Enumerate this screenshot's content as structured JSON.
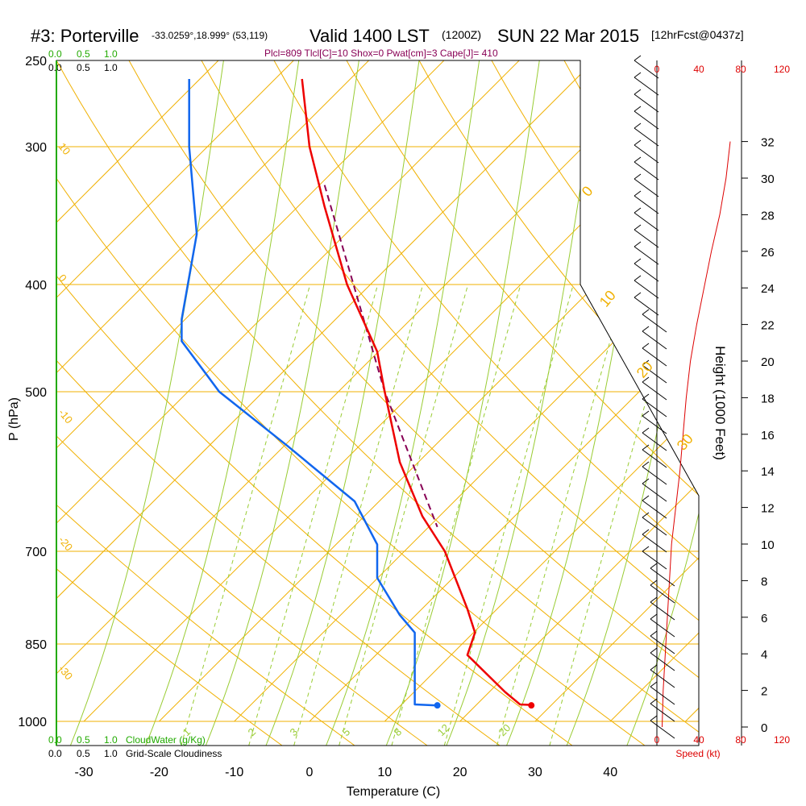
{
  "header": {
    "station": "#3: Porterville",
    "coords": "-33.0259°,18.999° (53,119)",
    "valid": "Valid 1400 LST",
    "utc": "(1200Z)",
    "date": "SUN 22 Mar 2015",
    "forecast": "[12hrFcst@0437z]",
    "indices": "Plcl=809 Tlcl[C]=10 Shox=0 Pwat[cm]=3 Cape[J]= 410"
  },
  "cloud_scale": {
    "top_green": [
      "0.0",
      "0.5",
      "1.0"
    ],
    "top_black": [
      "0.0",
      "0.5",
      "1.0"
    ],
    "bottom_green": [
      "0.0",
      "0.5",
      "1.0"
    ],
    "bottom_green_label": "CloudWater (g/Kg)",
    "bottom_black": [
      "0.0",
      "0.5",
      "1.0"
    ],
    "bottom_black_label": "Grid-Scale Cloudiness"
  },
  "speed_scale": {
    "ticks": [
      "0",
      "40",
      "80",
      "120"
    ],
    "label": "Speed (kt)"
  },
  "colors": {
    "temperature": "#ee0000",
    "dewpoint": "#1166ee",
    "parcel": "#880055",
    "isobar_isotherm": "#f0b000",
    "mixing_ratio": "#99cc33",
    "cloud_scale": "#22aa00",
    "speed": "#dd0000"
  },
  "chart_data": {
    "type": "skew-t log-p sounding",
    "xlabel": "Temperature (C)",
    "ylabel": "P (hPa)",
    "y2label": "Height (1000 Feet)",
    "x_ticks": [
      -30,
      -20,
      -10,
      0,
      10,
      20,
      30,
      40
    ],
    "pressure_ticks": [
      250,
      300,
      400,
      500,
      700,
      850,
      1000
    ],
    "height_ticks": [
      0,
      2,
      4,
      6,
      8,
      10,
      12,
      14,
      16,
      18,
      20,
      22,
      24,
      26,
      28,
      30,
      32
    ],
    "dry_adiabat_labels": [
      "10",
      "0",
      "-10",
      "-20",
      "-30"
    ],
    "moist_adiabat_labels": [
      "0",
      "10",
      "20",
      "30"
    ],
    "mixing_ratio_labels": [
      "1",
      "2",
      "3",
      "5",
      "8",
      "12",
      "20"
    ],
    "temperature": [
      [
        -1,
        260
      ],
      [
        0,
        300
      ],
      [
        2,
        340
      ],
      [
        5,
        400
      ],
      [
        9,
        460
      ],
      [
        10,
        500
      ],
      [
        12,
        580
      ],
      [
        15,
        650
      ],
      [
        18,
        700
      ],
      [
        21,
        790
      ],
      [
        22,
        830
      ],
      [
        21,
        870
      ],
      [
        26,
        940
      ],
      [
        28,
        965
      ],
      [
        29.5,
        966
      ]
    ],
    "dewpoint": [
      [
        -16,
        260
      ],
      [
        -16,
        300
      ],
      [
        -15,
        360
      ],
      [
        -17,
        430
      ],
      [
        -17,
        450
      ],
      [
        -12,
        500
      ],
      [
        -3,
        560
      ],
      [
        6,
        630
      ],
      [
        9,
        690
      ],
      [
        9,
        740
      ],
      [
        12,
        800
      ],
      [
        14,
        830
      ],
      [
        14,
        900
      ],
      [
        14,
        965
      ],
      [
        17,
        967
      ]
    ],
    "parcel": [
      [
        2,
        325
      ],
      [
        10,
        500
      ],
      [
        17,
        665
      ]
    ],
    "surface_temperature": 29.5,
    "surface_dewpoint": 17,
    "wind_speed_profile_kt": [
      [
        0,
        5
      ],
      [
        2,
        6
      ],
      [
        4,
        8
      ],
      [
        6,
        10
      ],
      [
        8,
        12
      ],
      [
        10,
        14
      ],
      [
        12,
        18
      ],
      [
        14,
        22
      ],
      [
        16,
        25
      ],
      [
        18,
        28
      ],
      [
        20,
        32
      ],
      [
        22,
        38
      ],
      [
        24,
        45
      ],
      [
        26,
        52
      ],
      [
        28,
        60
      ],
      [
        30,
        66
      ],
      [
        32,
        70
      ]
    ]
  }
}
